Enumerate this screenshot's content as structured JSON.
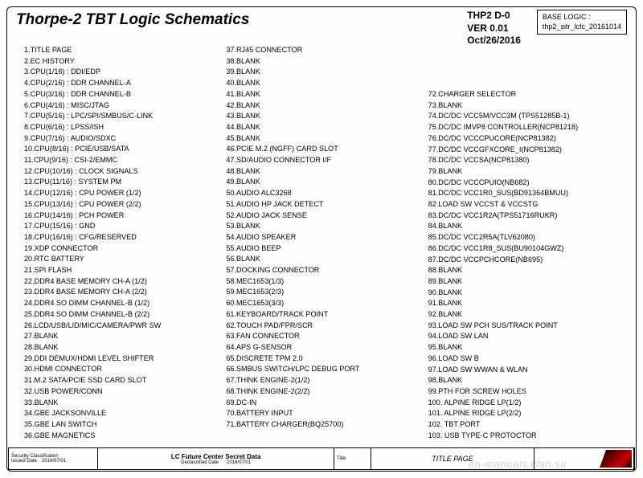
{
  "title": "Thorpe-2 TBT Logic Schematics",
  "version": {
    "line1": "THP2 D-0",
    "line2": "VER 0.01",
    "line3": "Oct/26/2016"
  },
  "base_logic": {
    "label": "BASE LOGIC :",
    "value": "thp2_sitr_lcfc_20161014"
  },
  "columns": [
    [
      "1.TITLE PAGE",
      "2.EC HISTORY",
      "3.CPU(1/16) : DDI/EDP",
      "4.CPU(2/16) : DDR CHANNEL-A",
      "5.CPU(3/16) : DDR CHANNEL-B",
      "6.CPU(4/16) : MISC/JTAG",
      "7.CPU(5/16) : LPC/SPI/SMBUS/C-LINK",
      "8.CPU(6/16) : LPSS/ISH",
      "9.CPU(7/16) : AUDIO/SDXC",
      "10.CPU(8/16) : PCIE/USB/SATA",
      "11.CPU(9/16) : CSI-2/EMMC",
      "12.CPU(10/16) : CLOCK SIGNALS",
      "13.CPU(11/16) : SYSTEM PM",
      "14.CPU(12/16) : CPU POWER (1/2)",
      "15.CPU(13/16) : CPU POWER (2/2)",
      "16.CPU(14/16) : PCH POWER",
      "17.CPU(15/16) : GND",
      "18.CPU(16/16) : CFG/RESERVED",
      "19.XDP CONNECTOR",
      "20.RTC BATTERY",
      "21.SPI FLASH",
      "22.DDR4 BASE MEMORY CH-A (1/2)",
      "23.DDR4 BASE MEMORY CH-A (2/2)",
      "24.DDR4 SO DIMM CHANNEL-B (1/2)",
      "25.DDR4 SO DIMM CHANNEL-B (2/2)",
      "26.LCD/USB/LID/MIC/CAMERA/PWR SW",
      "27.BLANK",
      "28.BLANK",
      "29.DDI DEMUX/HDMI LEVEL SHIFTER",
      "30.HDMI CONNECTOR",
      "31.M.2 SATA/PCIE SSD CARD SLOT",
      "32.USB POWER/CONN",
      "33.BLANK",
      "34.GBE JACKSONVILLE",
      "35.GBE LAN SWITCH",
      "36.GBE MAGNETICS"
    ],
    [
      "37.RJ45 CONNECTOR",
      "38.BLANK",
      "39.BLANK",
      "40.BLANK",
      "41.BLANK",
      "42.BLANK",
      "43.BLANK",
      "44.BLANK",
      "45.BLANK",
      "46.PCIE M.2 (NGFF) CARD SLOT",
      "47.SD/AUDIO CONNECTOR I/F",
      "48.BLANK",
      "49.BLANK",
      "50.AUDIO ALC3268",
      "51.AUDIO HP JACK DETECT",
      "52.AUDIO JACK SENSE",
      "53.BLANK",
      "54.AUDIO SPEAKER",
      "55.AUDIO BEEP",
      "56.BLANK",
      "57.DOCKING CONNECTOR",
      "58.MEC1653(1/3)",
      "59.MEC1653(2/3)",
      "60.MEC1653(3/3)",
      "61.KEYBOARD/TRACK POINT",
      "62.TOUCH PAD/FPR/SCR",
      "63.FAN CONNECTOR",
      "64.APS G-SENSOR",
      "65.DISCRETE TPM 2.0",
      "66.SMBUS SWITCH/LPC DEBUG PORT",
      "67.THINK ENGINE-2(1/2)",
      "68.THINK ENGINE-2(2/2)",
      "69.DC-IN",
      "70.BATTERY INPUT",
      "71.BATTERY CHARGER(BQ25700)"
    ],
    [
      "72.CHARGER SELECTOR",
      "73.BLANK",
      "74.DC/DC VCC5M/VCC3M (TPS51285B-1)",
      "75.DC/DC IMVP8 CONTROLLER(NCP81218)",
      "76.DC/DC VCCCPUCORE(NCP81382)",
      "77.DC/DC VCCGFXCORE_I(NCP81382)",
      "78.DC/DC VCCSA(NCP81380)",
      "79.BLANK",
      "80.DC/DC VCCCPUIO(NB682)",
      "81.DC/DC VCC1R0_SUS(BD91364BMUU)",
      "82.LOAD SW VCCST & VCCSTG",
      "83.DC/DC VCC1R2A(TPS51716RUKR)",
      "84.BLANK",
      "85.DC/DC VCC2R5A(TLV62080)",
      "86.DC/DC VCC1R8_SUS(BU90104GWZ)",
      "87.DC/DC VCCPCHCORE(NB695)",
      "88.BLANK",
      "89.BLANK",
      "90.BLANK",
      "91.BLANK",
      "92.BLANK",
      "93.LOAD SW PCH SUS/TRACK POINT",
      "94.LOAD SW LAN",
      "95.BLANK",
      "96.LOAD SW B",
      "97.LOAD SW WWAN & WLAN",
      "98.BLANK",
      "99.PTH FOR SCREW HOLES",
      "100. ALPINE RIDGE LP(1/2)",
      "101. ALPINE RIDGE LP(2/2)",
      "102. TBT PORT",
      "103. USB TYPE-C PROTOCTOR"
    ]
  ],
  "footer": {
    "security": "Security Classification",
    "center": "LC Future Center Secret Data",
    "issued_label": "Issued Date",
    "issued_val": "2016/07/01",
    "declass_label": "Declassified Date",
    "declass_val": "2016/07/01",
    "page_title_label": "Title",
    "page_title": "TITLE PAGE"
  },
  "watermark": "en-manuals.clan.su"
}
